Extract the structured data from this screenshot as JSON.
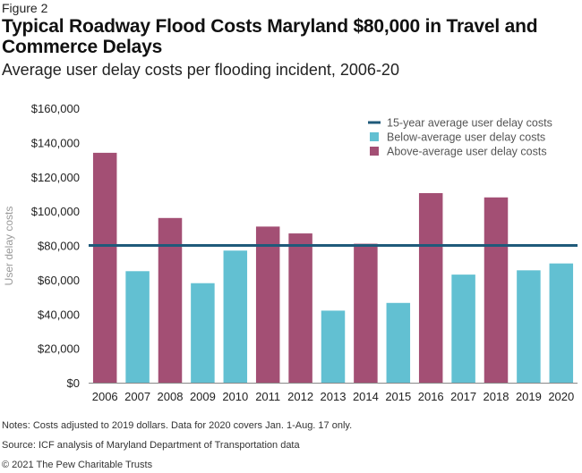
{
  "figure_label": "Figure 2",
  "title": "Typical Roadway Flood Costs Maryland $80,000 in Travel and Commerce Delays",
  "subtitle": "Average user delay costs per flooding incident, 2006-20",
  "notes": "Notes: Costs adjusted to 2019 dollars. Data for 2020 covers Jan. 1-Aug. 17 only.",
  "source": "Source: ICF analysis of Maryland Department of Transportation data",
  "copyright": "© 2021 The Pew Charitable Trusts",
  "colors": {
    "above": "#a34f74",
    "below": "#62c0d2",
    "average": "#1f5a7a",
    "axis": "#888888"
  },
  "chart_data": {
    "type": "bar",
    "title": "Typical Roadway Flood Costs Maryland $80,000 in Travel and Commerce Delays",
    "subtitle": "Average user delay costs per flooding incident, 2006-20",
    "xlabel": "",
    "ylabel": "User delay costs",
    "ylim": [
      0,
      160000
    ],
    "yticks": [
      0,
      20000,
      40000,
      60000,
      80000,
      100000,
      120000,
      140000,
      160000
    ],
    "ytick_labels": [
      "$0",
      "$20,000",
      "$40,000",
      "$60,000",
      "$80,000",
      "$100,000",
      "$120,000",
      "$140,000",
      "$160,000"
    ],
    "categories": [
      "2006",
      "2007",
      "2008",
      "2009",
      "2010",
      "2011",
      "2012",
      "2013",
      "2014",
      "2015",
      "2016",
      "2017",
      "2018",
      "2019",
      "2020"
    ],
    "values": [
      134000,
      65000,
      96000,
      58000,
      77000,
      91000,
      87000,
      42000,
      81000,
      46500,
      110500,
      63000,
      108000,
      65500,
      69500
    ],
    "classification": [
      "above",
      "below",
      "above",
      "below",
      "below",
      "above",
      "above",
      "below",
      "above",
      "below",
      "above",
      "below",
      "above",
      "below",
      "below"
    ],
    "average": 80000,
    "grid": false,
    "legend_position": "top-right",
    "legend": [
      {
        "key": "average",
        "label": "15-year average user delay costs",
        "type": "line"
      },
      {
        "key": "below",
        "label": "Below-average user delay costs",
        "type": "box"
      },
      {
        "key": "above",
        "label": "Above-average user delay costs",
        "type": "box"
      }
    ]
  }
}
